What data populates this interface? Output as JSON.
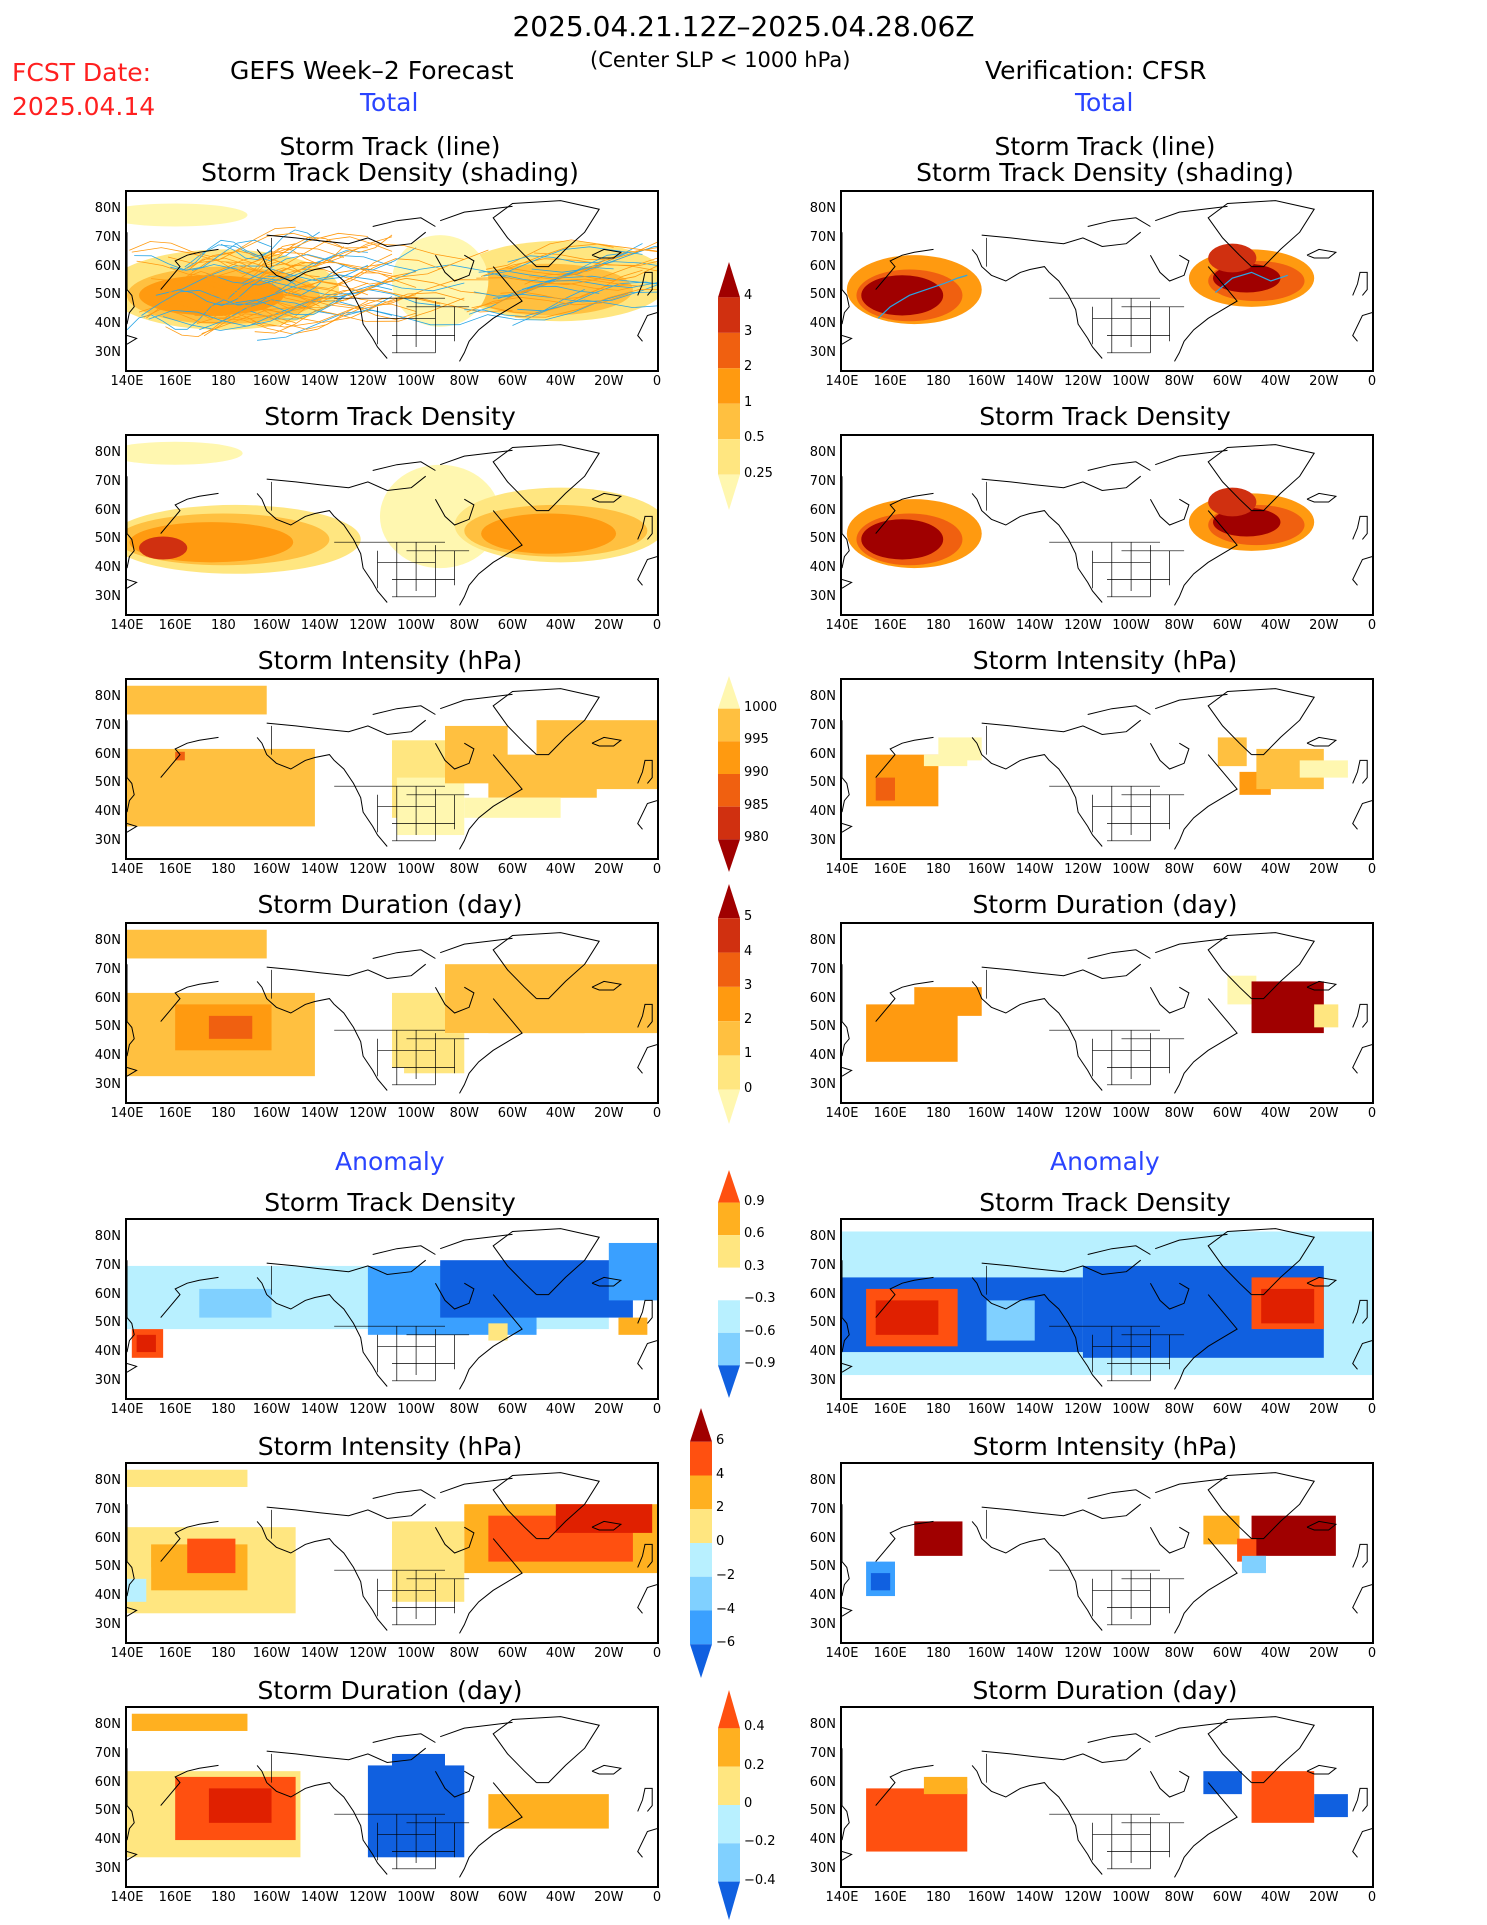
{
  "header": {
    "date_range": "2025.04.21.12Z–2025.04.28.06Z",
    "subtitle": "(Center SLP < 1000 hPa)",
    "fcst_label": "FCST Date:",
    "fcst_date": "2025.04.14",
    "left_title": "GEFS Week–2 Forecast",
    "right_title": "Verification: CFSR",
    "total_label": "Total",
    "anomaly_label": "Anomaly"
  },
  "panel_titles": {
    "track_line": "Storm Track (line)",
    "track_density_shading": "Storm Track Density (shading)",
    "track_density": "Storm Track Density",
    "intensity": "Storm Intensity (hPa)",
    "duration": "Storm Duration (day)"
  },
  "axes": {
    "lat_labels": [
      "80N",
      "70N",
      "60N",
      "50N",
      "40N",
      "30N"
    ],
    "lon_labels": [
      "140E",
      "160E",
      "180",
      "160W",
      "140W",
      "120W",
      "100W",
      "80W",
      "60W",
      "40W",
      "20W",
      "0"
    ]
  },
  "colorbars": {
    "density_total": [
      "4",
      "3",
      "2",
      "1",
      "0.5",
      "0.25"
    ],
    "intensity_total": [
      "1000",
      "995",
      "990",
      "985",
      "980"
    ],
    "duration_total": [
      "5",
      "4",
      "3",
      "2",
      "1",
      "0"
    ],
    "density_anom": [
      "0.9",
      "0.6",
      "0.3",
      "−0.3",
      "−0.6",
      "−0.9"
    ],
    "intensity_anom": [
      "6",
      "4",
      "2",
      "0",
      "−2",
      "−4",
      "−6"
    ],
    "duration_anom": [
      "0.4",
      "0.2",
      "0",
      "−0.2",
      "−0.4"
    ]
  },
  "palette": {
    "warm": [
      "#fff7b0",
      "#ffe680",
      "#ffc040",
      "#ff9a10",
      "#f06010",
      "#d03010",
      "#a00000"
    ],
    "anom_pos": [
      "#ffe680",
      "#ffb020",
      "#ff5010",
      "#e02000",
      "#a00000"
    ],
    "anom_neg": [
      "#b8f0ff",
      "#80d0ff",
      "#3aa0ff",
      "#1060e0"
    ],
    "track_line": "#2aa6e6",
    "track_line_orange": "#ff9a10"
  }
}
